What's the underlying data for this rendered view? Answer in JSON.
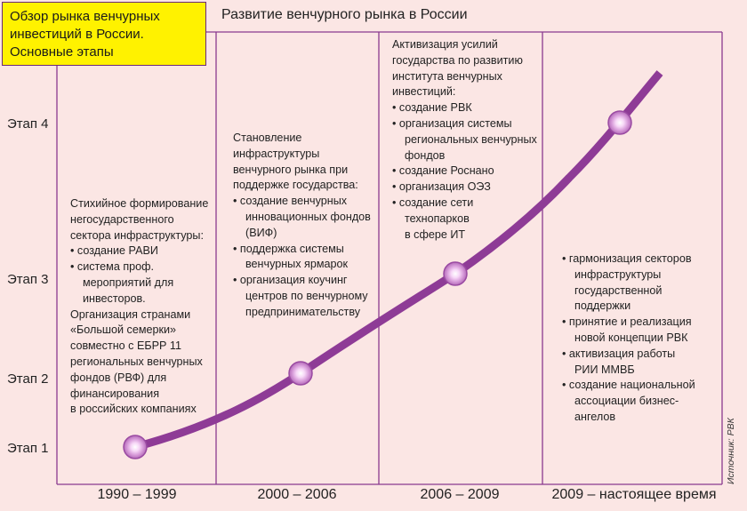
{
  "header": {
    "box_lines": [
      "Обзор рынка венчурных",
      "инвестиций в России.",
      "Основные этапы"
    ],
    "chart_title": "Развитие венчурного рынка в России"
  },
  "stages": [
    "Этап 1",
    "Этап 2",
    "Этап 3",
    "Этап 4"
  ],
  "periods": [
    "1990 – 1999",
    "2000 – 2006",
    "2006 – 2009",
    "2009 – настоящее время"
  ],
  "columns": [
    {
      "lines": [
        "Стихийное формирование",
        "негосударственного",
        "сектора инфраструктуры:",
        "•  создание РАВИ",
        "•  система проф.",
        "   мероприятий для",
        "   инвесторов.",
        "Организация странами",
        "«Большой семерки»",
        "совместно с ЕБРР 11",
        "региональных венчурных",
        "фондов (РВФ) для",
        "финансирования",
        "в российских компаниях"
      ]
    },
    {
      "lines": [
        "Становление",
        "инфраструктуры",
        "венчурного рынка при",
        "поддержке государства:",
        "•  создание венчурных",
        "   инновационных фондов",
        "   (ВИФ)",
        "•  поддержка системы",
        "   венчурных ярмарок",
        "•  организация коучинг",
        "   центров по венчурному",
        "   предпринимательству"
      ]
    },
    {
      "lines": [
        "Активизация усилий",
        "государства по развитию",
        "института венчурных",
        "инвестиций:",
        "•  создание РВК",
        "•  организация системы",
        "   региональных венчурных",
        "   фондов",
        "•  создание Роснано",
        "•  организация ОЭЗ",
        "•  создание сети",
        "   технопарков",
        "   в сфере ИТ"
      ]
    },
    {
      "lines": [
        "•  гармонизация секторов",
        "   инфраструктуры",
        "   государственной",
        "   поддержки",
        "•  принятие и реализация",
        "   новой концепции РВК",
        "•  активизация работы",
        "   РИИ ММВБ",
        "•  создание национальной",
        "   ассоциации бизнес-",
        "   ангелов"
      ]
    }
  ],
  "source": "Источник: РВК",
  "colors": {
    "background": "#fbe6e4",
    "curve": "#8e3b96",
    "grid": "#8a3a8f",
    "title_box": "#fff200"
  }
}
